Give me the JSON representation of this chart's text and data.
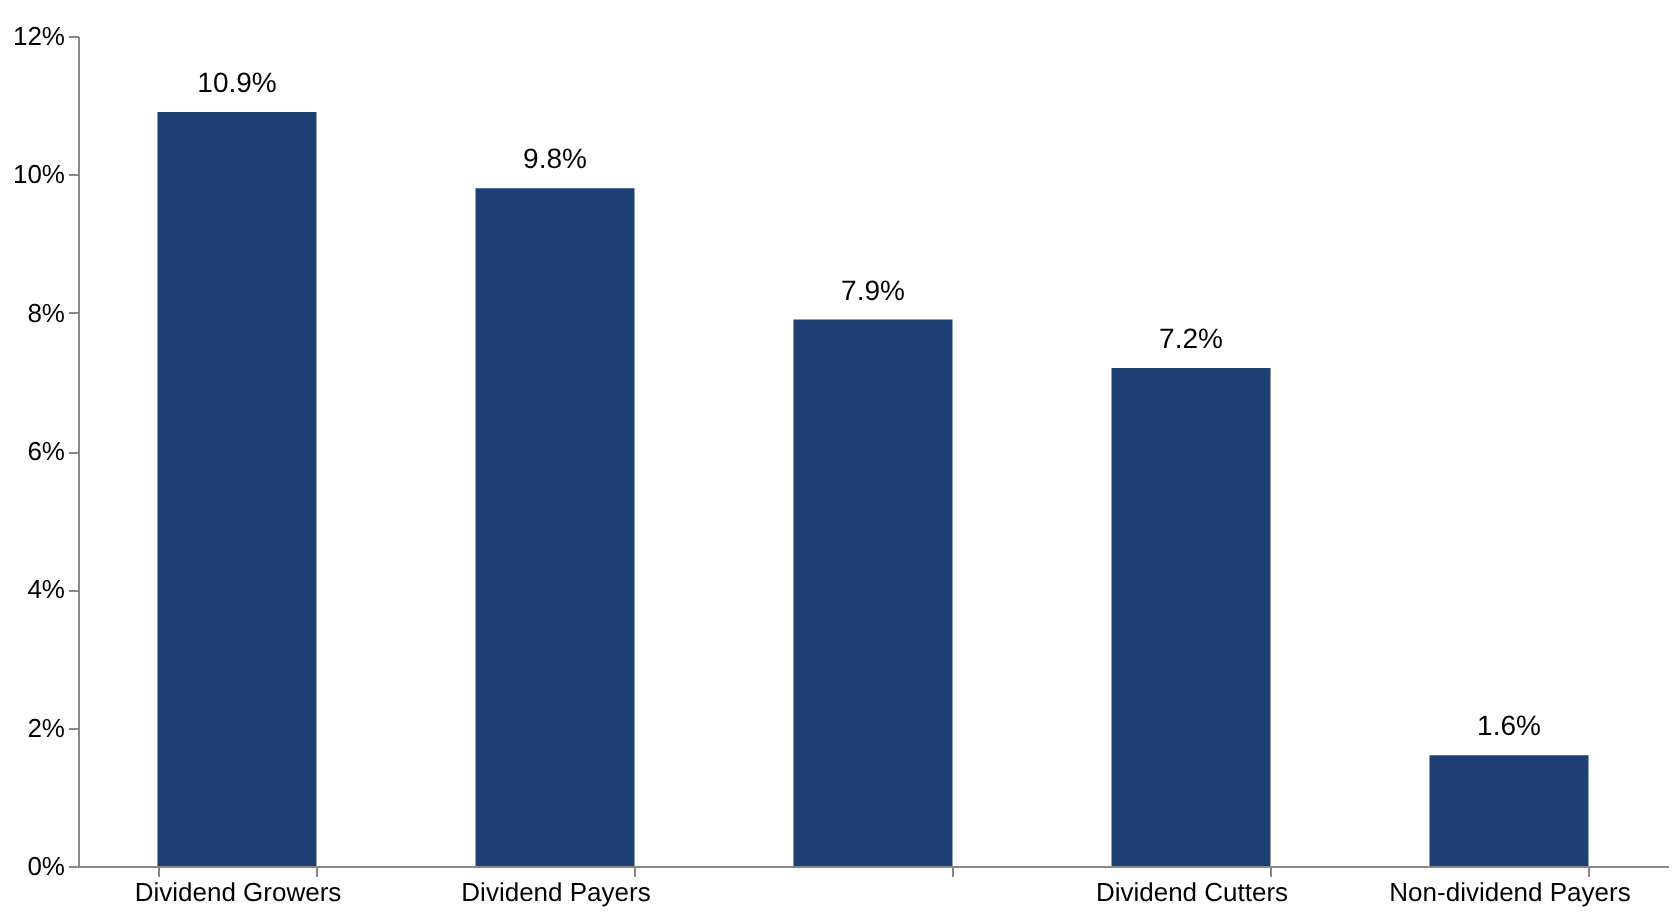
{
  "chart_data": {
    "type": "bar",
    "categories": [
      "Dividend Growers",
      "Dividend Payers",
      null,
      "Dividend Cutters",
      "Non-dividend Payers"
    ],
    "values": [
      10.9,
      9.8,
      7.9,
      7.2,
      1.6
    ],
    "color": "#1d3f73",
    "value_labels": [
      "10.9%",
      "9.8%",
      "7.9%",
      "7.2%",
      "1.6%"
    ],
    "ylim": [
      0,
      12
    ],
    "yticks": [
      {
        "value": 0,
        "label": "0%"
      },
      {
        "value": 2,
        "label": "2%"
      },
      {
        "value": 4,
        "label": "4%"
      },
      {
        "value": 6,
        "label": "6%"
      },
      {
        "value": 8,
        "label": "8%"
      },
      {
        "value": 10,
        "label": "10%"
      },
      {
        "value": 12,
        "label": "12%"
      }
    ],
    "grid": false
  }
}
